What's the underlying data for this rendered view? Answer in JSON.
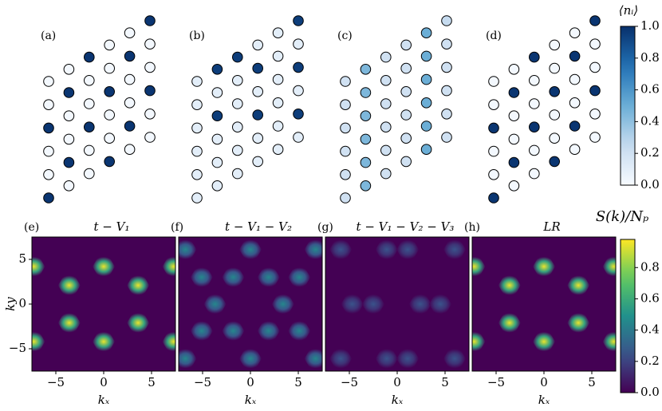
{
  "chart_data": [
    {
      "type": "lattice",
      "label": "(a)",
      "values": [
        [
          0.02,
          0.02,
          0.98,
          0.02,
          0.02,
          0.98
        ],
        [
          0.02,
          0.98,
          0.02,
          0.02,
          0.98,
          0.02
        ],
        [
          0.98,
          0.02,
          0.02,
          0.98,
          0.02,
          0.02
        ],
        [
          0.02,
          0.02,
          0.98,
          0.02,
          0.02,
          0.98
        ],
        [
          0.02,
          0.98,
          0.02,
          0.02,
          0.98,
          0.02
        ],
        [
          0.98,
          0.02,
          0.02,
          0.98,
          0.02,
          0.02
        ]
      ]
    },
    {
      "type": "lattice",
      "label": "(b)",
      "values": [
        [
          0.1,
          0.1,
          0.1,
          0.1,
          0.1,
          0.1
        ],
        [
          0.95,
          0.1,
          0.95,
          0.1,
          0.1,
          0.1
        ],
        [
          0.95,
          0.1,
          0.1,
          0.1,
          0.1,
          0.1
        ],
        [
          0.1,
          0.95,
          0.1,
          0.95,
          0.1,
          0.1
        ],
        [
          0.1,
          0.1,
          0.1,
          0.1,
          0.1,
          0.1
        ],
        [
          0.95,
          0.1,
          0.95,
          0.1,
          0.95,
          0.1
        ]
      ]
    },
    {
      "type": "lattice",
      "label": "(c)",
      "values": [
        [
          0.2,
          0.2,
          0.2,
          0.2,
          0.2,
          0.2
        ],
        [
          0.45,
          0.45,
          0.45,
          0.45,
          0.45,
          0.45
        ],
        [
          0.2,
          0.2,
          0.2,
          0.2,
          0.2,
          0.2
        ],
        [
          0.2,
          0.2,
          0.2,
          0.2,
          0.2,
          0.2
        ],
        [
          0.5,
          0.5,
          0.5,
          0.5,
          0.5,
          0.5
        ],
        [
          0.25,
          0.2,
          0.2,
          0.2,
          0.2,
          0.2
        ]
      ]
    },
    {
      "type": "lattice",
      "label": "(d)",
      "values": [
        [
          0.02,
          0.02,
          0.98,
          0.02,
          0.02,
          0.98
        ],
        [
          0.02,
          0.98,
          0.02,
          0.02,
          0.98,
          0.02
        ],
        [
          0.98,
          0.02,
          0.02,
          0.98,
          0.02,
          0.02
        ],
        [
          0.02,
          0.02,
          0.98,
          0.02,
          0.02,
          0.98
        ],
        [
          0.02,
          0.98,
          0.02,
          0.02,
          0.98,
          0.02
        ],
        [
          0.98,
          0.02,
          0.02,
          0.98,
          0.02,
          0.02
        ]
      ]
    },
    {
      "type": "colorbar",
      "colormap": "Blues",
      "label": "⟨nᵢ⟩",
      "lim": [
        0,
        1
      ],
      "ticks": [
        {
          "value": 0,
          "label": "0.0"
        },
        {
          "value": 0.2,
          "label": "0.2"
        },
        {
          "value": 0.4,
          "label": "0.4"
        },
        {
          "value": 0.6,
          "label": "0.6"
        },
        {
          "value": 0.8,
          "label": "0.8"
        },
        {
          "value": 1,
          "label": "1.0"
        }
      ]
    },
    {
      "type": "heatmap",
      "label": "(e)",
      "title": "t − V₁",
      "xlabel": "kₓ",
      "ylabel": "ky",
      "x": [
        0,
        -3.6,
        3.6,
        -3.6,
        3.6,
        0,
        -7.3,
        7.3,
        -7.3,
        7.3
      ],
      "y": [
        4.2,
        2.1,
        2.1,
        -2.1,
        -2.1,
        -4.2,
        4.2,
        4.2,
        -4.2,
        -4.2
      ],
      "values": [
        0.95,
        0.95,
        0.95,
        0.95,
        0.95,
        0.95,
        0.95,
        0.95,
        0.95,
        0.95
      ],
      "xlim": [
        -7.5,
        7.5
      ],
      "ylim": [
        -7.5,
        7.5
      ],
      "xticks": [
        {
          "value": -5,
          "label": "−5"
        },
        0,
        5
      ],
      "yticks": [
        {
          "value": -5,
          "label": "−5"
        },
        0,
        5
      ]
    },
    {
      "type": "heatmap",
      "label": "(f)",
      "title": "t − V₁ − V₂",
      "xlabel": "kₓ",
      "x": [
        -6.8,
        0,
        6.8,
        -5.1,
        -1.8,
        1.9,
        5.1,
        -3.7,
        3.4,
        -5.1,
        -1.8,
        1.9,
        5.1,
        -6.8,
        0,
        6.8
      ],
      "y": [
        6.1,
        6.1,
        6.1,
        3,
        3,
        3,
        3,
        0,
        0,
        -3,
        -3,
        -3,
        -3,
        -6.1,
        -6.1,
        -6.1
      ],
      "values": [
        0.45,
        0.45,
        0.45,
        0.45,
        0.45,
        0.45,
        0.45,
        0.45,
        0.45,
        0.45,
        0.45,
        0.45,
        0.45,
        0.45,
        0.45,
        0.45
      ],
      "xlim": [
        -7.5,
        7.5
      ],
      "ylim": [
        -7.5,
        7.5
      ],
      "xticks": [
        {
          "value": -5,
          "label": "−5"
        },
        0,
        5
      ]
    },
    {
      "type": "heatmap",
      "label": "(g)",
      "title": "t − V₁ − V₂ − V₃",
      "xlabel": "kₓ",
      "x": [
        -5.9,
        -1.1,
        1.1,
        6,
        -4.7,
        -2.5,
        2.4,
        4.5,
        -5.9,
        -1.1,
        1.1,
        6
      ],
      "y": [
        6.1,
        6.1,
        6.1,
        6.1,
        0,
        0,
        0,
        0,
        -6.1,
        -6.1,
        -6.1,
        -6.1
      ],
      "values": [
        0.25,
        0.25,
        0.25,
        0.25,
        0.25,
        0.25,
        0.25,
        0.25,
        0.25,
        0.25,
        0.25,
        0.25
      ],
      "xlim": [
        -7.5,
        7.5
      ],
      "ylim": [
        -7.5,
        7.5
      ],
      "xticks": [
        {
          "value": -5,
          "label": "−5"
        },
        0,
        5
      ]
    },
    {
      "type": "heatmap",
      "label": "(h)",
      "title": "LR",
      "xlabel": "kₓ",
      "x": [
        0,
        -3.6,
        3.6,
        -3.6,
        3.6,
        0,
        -7.3,
        7.3,
        -7.3,
        7.3
      ],
      "y": [
        4.2,
        2.1,
        2.1,
        -2.1,
        -2.1,
        -4.2,
        4.2,
        4.2,
        -4.2,
        -4.2
      ],
      "values": [
        0.95,
        0.95,
        0.95,
        0.95,
        0.95,
        0.95,
        0.95,
        0.95,
        0.95,
        0.95
      ],
      "xlim": [
        -7.5,
        7.5
      ],
      "ylim": [
        -7.5,
        7.5
      ],
      "xticks": [
        {
          "value": -5,
          "label": "−5"
        },
        0,
        5
      ]
    },
    {
      "type": "colorbar",
      "colormap": "viridis",
      "label": "S(k)/Nₚ",
      "lim": [
        0,
        0.98
      ],
      "ticks": [
        {
          "value": 0,
          "label": "0.0"
        },
        {
          "value": 0.2,
          "label": "0.2"
        },
        {
          "value": 0.4,
          "label": "0.4"
        },
        {
          "value": 0.6,
          "label": "0.6"
        },
        {
          "value": 0.8,
          "label": "0.8"
        }
      ]
    }
  ]
}
